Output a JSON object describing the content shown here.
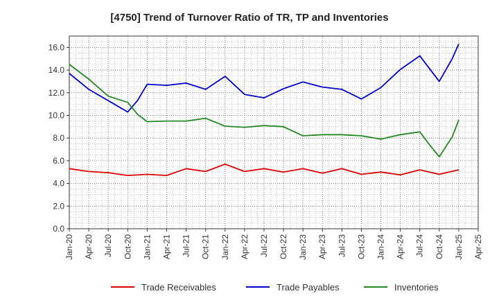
{
  "chart_data": {
    "type": "line",
    "title": "[4750]  Trend of Turnover Ratio of TR, TP and Inventories",
    "xlabel": "",
    "ylabel": "",
    "ylim": [
      0,
      17
    ],
    "yticks": [
      "0.0",
      "2.0",
      "4.0",
      "6.0",
      "8.0",
      "10.0",
      "12.0",
      "14.0",
      "16.0"
    ],
    "ytick_values": [
      0,
      2,
      4,
      6,
      8,
      10,
      12,
      14,
      16
    ],
    "xticks": [
      "Jan-20",
      "Apr-20",
      "Jul-20",
      "Oct-20",
      "Jan-21",
      "Apr-21",
      "Jul-21",
      "Oct-21",
      "Jan-22",
      "Apr-22",
      "Jul-22",
      "Oct-22",
      "Jan-23",
      "Apr-23",
      "Jul-23",
      "Oct-23",
      "Jan-24",
      "Apr-24",
      "Jul-24",
      "Oct-24",
      "Jan-25",
      "Apr-25"
    ],
    "grid": true,
    "legend_position": "bottom",
    "x": [
      "Jan-20",
      "Apr-20",
      "Jul-20",
      "Oct-20",
      "Jan-21",
      "Apr-21",
      "Jul-21",
      "Oct-21",
      "Jan-22",
      "Apr-22",
      "Jul-22",
      "Oct-22",
      "Jan-23",
      "Apr-23",
      "Jul-23",
      "Oct-23",
      "Jan-24",
      "Apr-24",
      "Jul-24",
      "Oct-24",
      "Jan-25"
    ],
    "series": [
      {
        "name": "Trade Receivables",
        "color": "#dd0000",
        "points": [
          [
            0,
            5.3
          ],
          [
            3,
            5.05
          ],
          [
            6,
            4.95
          ],
          [
            9,
            4.7
          ],
          [
            12,
            4.8
          ],
          [
            15,
            4.7
          ],
          [
            18,
            5.3
          ],
          [
            21,
            5.05
          ],
          [
            24,
            5.7
          ],
          [
            27,
            5.05
          ],
          [
            30,
            5.3
          ],
          [
            33,
            5.0
          ],
          [
            36,
            5.3
          ],
          [
            39,
            4.9
          ],
          [
            42,
            5.3
          ],
          [
            45,
            4.8
          ],
          [
            48,
            5.0
          ],
          [
            51,
            4.75
          ],
          [
            54,
            5.2
          ],
          [
            57,
            4.8
          ],
          [
            60,
            5.2
          ]
        ]
      },
      {
        "name": "Trade Payables",
        "color": "#0000cc",
        "points": [
          [
            0,
            13.7
          ],
          [
            3,
            12.3
          ],
          [
            6,
            11.3
          ],
          [
            9,
            10.3
          ],
          [
            10.5,
            11.3
          ],
          [
            12,
            12.75
          ],
          [
            15,
            12.65
          ],
          [
            18,
            12.85
          ],
          [
            21,
            12.3
          ],
          [
            24,
            13.45
          ],
          [
            27,
            11.85
          ],
          [
            30,
            11.55
          ],
          [
            33,
            12.35
          ],
          [
            36,
            12.95
          ],
          [
            39,
            12.5
          ],
          [
            42,
            12.3
          ],
          [
            45,
            11.45
          ],
          [
            48,
            12.45
          ],
          [
            51,
            14.05
          ],
          [
            54,
            15.25
          ],
          [
            57,
            13.0
          ],
          [
            59,
            15.0
          ],
          [
            60,
            16.3
          ]
        ]
      },
      {
        "name": "Inventories",
        "color": "#228822",
        "points": [
          [
            0,
            14.5
          ],
          [
            3,
            13.2
          ],
          [
            6,
            11.7
          ],
          [
            9,
            11.15
          ],
          [
            10.5,
            10.1
          ],
          [
            12,
            9.45
          ],
          [
            15,
            9.5
          ],
          [
            18,
            9.5
          ],
          [
            21,
            9.75
          ],
          [
            24,
            9.05
          ],
          [
            27,
            8.95
          ],
          [
            30,
            9.1
          ],
          [
            33,
            9.0
          ],
          [
            36,
            8.2
          ],
          [
            39,
            8.3
          ],
          [
            42,
            8.3
          ],
          [
            45,
            8.2
          ],
          [
            48,
            7.9
          ],
          [
            51,
            8.3
          ],
          [
            54,
            8.55
          ],
          [
            55.5,
            7.4
          ],
          [
            57,
            6.35
          ],
          [
            59,
            8.1
          ],
          [
            60,
            9.6
          ]
        ]
      }
    ]
  }
}
